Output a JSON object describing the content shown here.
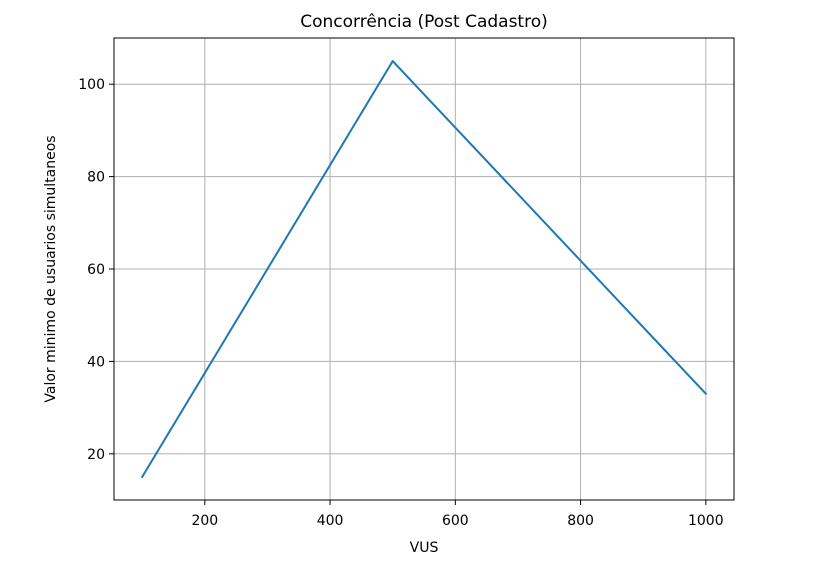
{
  "chart_data": {
    "type": "line",
    "title": "Concorrência (Post Cadastro)",
    "xlabel": "VUS",
    "ylabel": "Valor minimo de usuarios simultaneos",
    "xlim": [
      55,
      1045
    ],
    "ylim": [
      10,
      110
    ],
    "xticks": [
      200,
      400,
      600,
      800,
      1000
    ],
    "yticks": [
      20,
      40,
      60,
      80,
      100
    ],
    "grid": true,
    "series": [
      {
        "color": "#1f77b4",
        "x": [
          100,
          500,
          1000
        ],
        "y": [
          15,
          105,
          33
        ]
      }
    ]
  }
}
